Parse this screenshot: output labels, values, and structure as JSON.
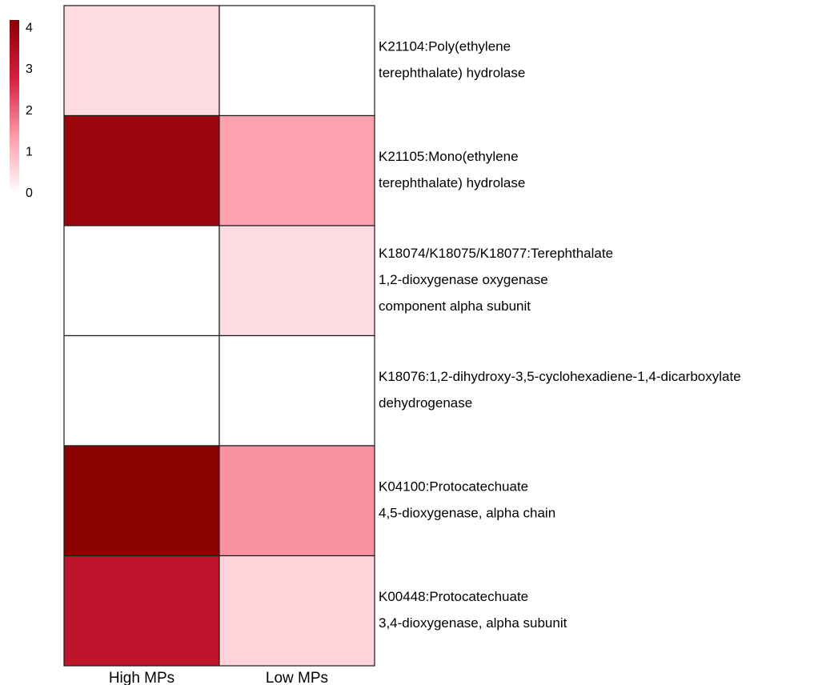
{
  "chart_data": {
    "type": "heatmap",
    "title": "",
    "xlabel": "",
    "ylabel": "",
    "columns": [
      "High MPs",
      "Low MPs"
    ],
    "rows": [
      {
        "label_lines": [
          "K21104:Poly(ethylene",
          "terephthalate) hydrolase"
        ],
        "values": [
          0.5,
          0
        ]
      },
      {
        "label_lines": [
          "K21105:Mono(ethylene",
          "terephthalate) hydrolase"
        ],
        "values": [
          3.9,
          1.3
        ]
      },
      {
        "label_lines": [
          "K18074/K18075/K18077:Terephthalate",
          "1,2-dioxygenase oxygenase",
          "component alpha subunit"
        ],
        "values": [
          0,
          0.5
        ]
      },
      {
        "label_lines": [
          "K18076:1,2-dihydroxy-3,5-cyclohexadiene-1,4-dicarboxylate",
          "dehydrogenase"
        ],
        "values": [
          0,
          0
        ]
      },
      {
        "label_lines": [
          "K04100:Protocatechuate",
          "4,5-dioxygenase, alpha chain"
        ],
        "values": [
          4.2,
          1.5
        ]
      },
      {
        "label_lines": [
          "K00448:Protocatechuate",
          "3,4-dioxygenase, alpha subunit"
        ],
        "values": [
          3.2,
          0.6
        ]
      }
    ],
    "color_scale": {
      "min": 0,
      "max": 4.2,
      "ticks": [
        "0",
        "1",
        "2",
        "3",
        "4"
      ],
      "stops": [
        {
          "value": 0,
          "color": "#ffffff"
        },
        {
          "value": 1.4,
          "color": "#fc9ba9"
        },
        {
          "value": 2.8,
          "color": "#d41e3e"
        },
        {
          "value": 4.2,
          "color": "#8b0000"
        }
      ]
    },
    "grid": true,
    "legend_position": "top-left"
  }
}
